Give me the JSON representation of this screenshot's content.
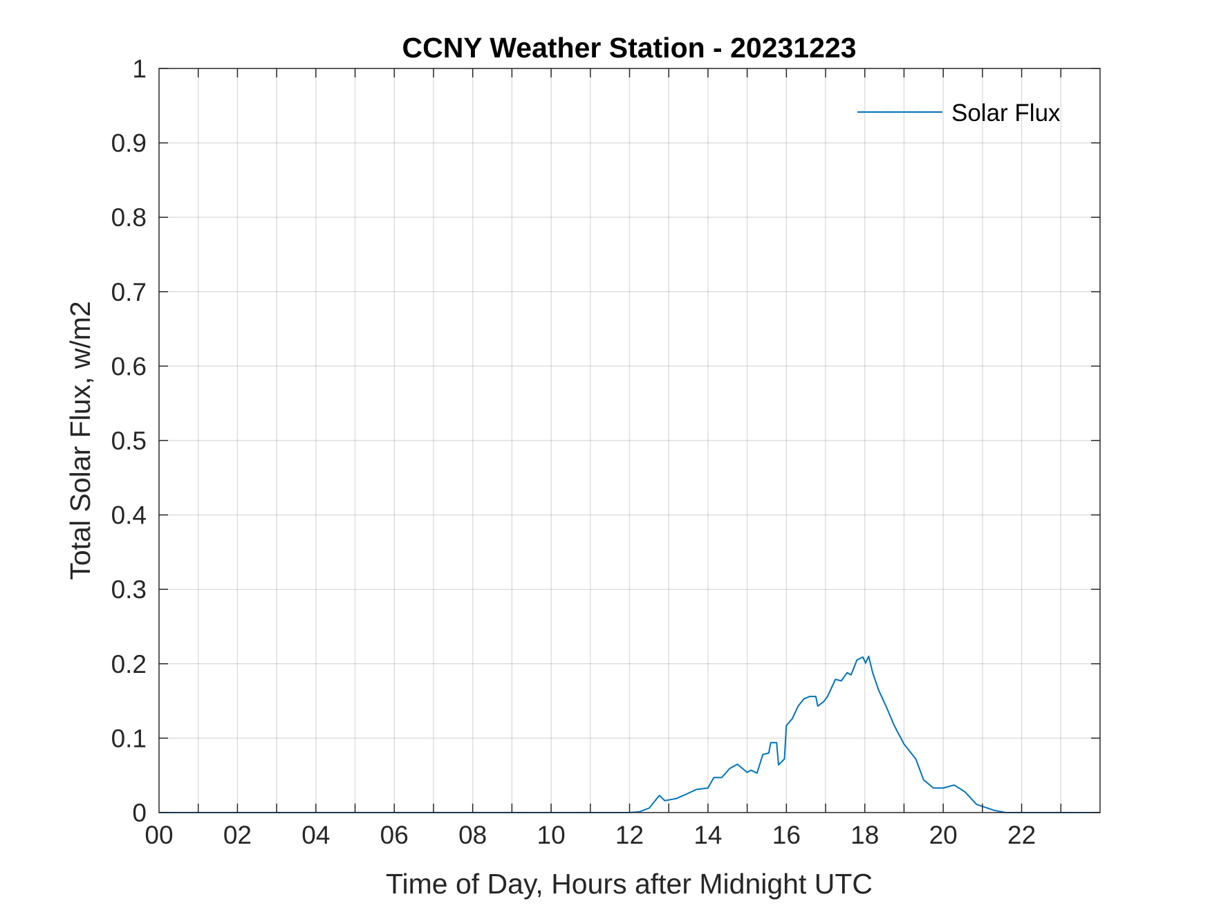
{
  "chart_data": {
    "type": "line",
    "title": "CCNY Weather Station - 20231223",
    "xlabel": "Time of Day, Hours after Midnight UTC",
    "ylabel": "Total Solar Flux, w/m2",
    "xlim": [
      0,
      24
    ],
    "ylim": [
      0,
      1
    ],
    "grid": true,
    "legend_placement": "top-right",
    "x_ticks": [
      0,
      2,
      4,
      6,
      8,
      10,
      12,
      14,
      16,
      18,
      20,
      22
    ],
    "x_tick_labels": [
      "00",
      "02",
      "04",
      "06",
      "08",
      "10",
      "12",
      "14",
      "16",
      "18",
      "20",
      "22"
    ],
    "y_ticks": [
      0,
      0.1,
      0.2,
      0.3,
      0.4,
      0.5,
      0.6,
      0.7,
      0.8,
      0.9,
      1
    ],
    "y_tick_labels": [
      "0",
      "0.1",
      "0.2",
      "0.3",
      "0.4",
      "0.5",
      "0.6",
      "0.7",
      "0.8",
      "0.9",
      "1"
    ],
    "series": [
      {
        "name": "Solar Flux",
        "color": "#0072BD",
        "x": [
          0,
          12.0,
          12.25,
          12.5,
          12.76,
          12.9,
          13.2,
          13.5,
          13.7,
          14.0,
          14.15,
          14.35,
          14.55,
          14.75,
          15.0,
          15.1,
          15.25,
          15.4,
          15.55,
          15.6,
          15.75,
          15.8,
          15.95,
          16.0,
          16.15,
          16.3,
          16.45,
          16.6,
          16.75,
          16.8,
          16.95,
          17.05,
          17.25,
          17.4,
          17.55,
          17.65,
          17.8,
          17.95,
          18.02,
          18.1,
          18.2,
          18.35,
          18.55,
          18.75,
          19.0,
          19.3,
          19.5,
          19.75,
          20.0,
          20.28,
          20.55,
          20.85,
          21.3,
          21.6,
          24
        ],
        "y": [
          0,
          0,
          0.001,
          0.006,
          0.023,
          0.016,
          0.019,
          0.026,
          0.031,
          0.033,
          0.047,
          0.047,
          0.059,
          0.065,
          0.054,
          0.057,
          0.053,
          0.078,
          0.08,
          0.094,
          0.094,
          0.064,
          0.072,
          0.117,
          0.126,
          0.143,
          0.153,
          0.156,
          0.156,
          0.143,
          0.149,
          0.156,
          0.179,
          0.177,
          0.188,
          0.185,
          0.205,
          0.209,
          0.201,
          0.21,
          0.188,
          0.165,
          0.142,
          0.117,
          0.092,
          0.072,
          0.044,
          0.033,
          0.033,
          0.037,
          0.028,
          0.011,
          0.003,
          0,
          0
        ]
      }
    ]
  }
}
